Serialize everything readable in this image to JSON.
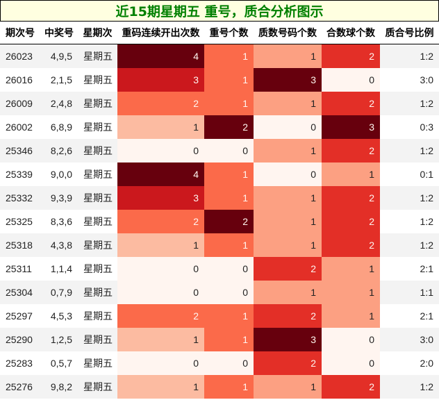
{
  "title": "近15期星期五 重号，质合分析图示",
  "columns": [
    "期次号",
    "中奖号",
    "星期次",
    "重码连续开出次数",
    "重号个数",
    "质数号码个数",
    "合数球个数",
    "质合号比例"
  ],
  "palettes": {
    "repeat_streak": {
      "0": "#fff5f0",
      "1": "#fcbba1",
      "2": "#fb6a4a",
      "3": "#cb181d",
      "4": "#67000d"
    },
    "repeat_count": {
      "0": "#fff5f0",
      "1": "#fb6a4a",
      "2": "#67000d"
    },
    "prime_count": {
      "0": "#fff5f0",
      "1": "#fca082",
      "2": "#e32f27",
      "3": "#67000d"
    },
    "composite_count": {
      "0": "#fff5f0",
      "1": "#fca082",
      "2": "#e32f27",
      "3": "#67000d"
    }
  },
  "rows": [
    {
      "issue": "26023",
      "numbers": "4,9,5",
      "weekday": "星期五",
      "repeat_streak": 4,
      "repeat_count": 1,
      "prime_count": 1,
      "composite_count": 2,
      "ratio": "1:2"
    },
    {
      "issue": "26016",
      "numbers": "2,1,5",
      "weekday": "星期五",
      "repeat_streak": 3,
      "repeat_count": 1,
      "prime_count": 3,
      "composite_count": 0,
      "ratio": "3:0"
    },
    {
      "issue": "26009",
      "numbers": "2,4,8",
      "weekday": "星期五",
      "repeat_streak": 2,
      "repeat_count": 1,
      "prime_count": 1,
      "composite_count": 2,
      "ratio": "1:2"
    },
    {
      "issue": "26002",
      "numbers": "6,8,9",
      "weekday": "星期五",
      "repeat_streak": 1,
      "repeat_count": 2,
      "prime_count": 0,
      "composite_count": 3,
      "ratio": "0:3"
    },
    {
      "issue": "25346",
      "numbers": "8,2,6",
      "weekday": "星期五",
      "repeat_streak": 0,
      "repeat_count": 0,
      "prime_count": 1,
      "composite_count": 2,
      "ratio": "1:2"
    },
    {
      "issue": "25339",
      "numbers": "9,0,0",
      "weekday": "星期五",
      "repeat_streak": 4,
      "repeat_count": 1,
      "prime_count": 0,
      "composite_count": 1,
      "ratio": "0:1"
    },
    {
      "issue": "25332",
      "numbers": "9,3,9",
      "weekday": "星期五",
      "repeat_streak": 3,
      "repeat_count": 1,
      "prime_count": 1,
      "composite_count": 2,
      "ratio": "1:2"
    },
    {
      "issue": "25325",
      "numbers": "8,3,6",
      "weekday": "星期五",
      "repeat_streak": 2,
      "repeat_count": 2,
      "prime_count": 1,
      "composite_count": 2,
      "ratio": "1:2"
    },
    {
      "issue": "25318",
      "numbers": "4,3,8",
      "weekday": "星期五",
      "repeat_streak": 1,
      "repeat_count": 1,
      "prime_count": 1,
      "composite_count": 2,
      "ratio": "1:2"
    },
    {
      "issue": "25311",
      "numbers": "1,1,4",
      "weekday": "星期五",
      "repeat_streak": 0,
      "repeat_count": 0,
      "prime_count": 2,
      "composite_count": 1,
      "ratio": "2:1"
    },
    {
      "issue": "25304",
      "numbers": "0,7,9",
      "weekday": "星期五",
      "repeat_streak": 0,
      "repeat_count": 0,
      "prime_count": 1,
      "composite_count": 1,
      "ratio": "1:1"
    },
    {
      "issue": "25297",
      "numbers": "4,5,3",
      "weekday": "星期五",
      "repeat_streak": 2,
      "repeat_count": 1,
      "prime_count": 2,
      "composite_count": 1,
      "ratio": "2:1"
    },
    {
      "issue": "25290",
      "numbers": "1,2,5",
      "weekday": "星期五",
      "repeat_streak": 1,
      "repeat_count": 1,
      "prime_count": 3,
      "composite_count": 0,
      "ratio": "3:0"
    },
    {
      "issue": "25283",
      "numbers": "0,5,7",
      "weekday": "星期五",
      "repeat_streak": 0,
      "repeat_count": 0,
      "prime_count": 2,
      "composite_count": 0,
      "ratio": "2:0"
    },
    {
      "issue": "25276",
      "numbers": "9,8,2",
      "weekday": "星期五",
      "repeat_streak": 1,
      "repeat_count": 1,
      "prime_count": 1,
      "composite_count": 2,
      "ratio": "1:2"
    }
  ],
  "chart_data": {
    "type": "heatmap",
    "title": "近15期星期五 重号，质合分析图示",
    "categories": [
      "26023",
      "26016",
      "26009",
      "26002",
      "25346",
      "25339",
      "25332",
      "25325",
      "25318",
      "25311",
      "25304",
      "25297",
      "25290",
      "25283",
      "25276"
    ],
    "series": [
      {
        "name": "重码连续开出次数",
        "values": [
          4,
          3,
          2,
          1,
          0,
          4,
          3,
          2,
          1,
          0,
          0,
          2,
          1,
          0,
          1
        ]
      },
      {
        "name": "重号个数",
        "values": [
          1,
          1,
          1,
          2,
          0,
          1,
          1,
          2,
          1,
          0,
          0,
          1,
          1,
          0,
          1
        ]
      },
      {
        "name": "质数号码个数",
        "values": [
          1,
          3,
          1,
          0,
          1,
          0,
          1,
          1,
          1,
          2,
          1,
          2,
          3,
          2,
          1
        ]
      },
      {
        "name": "合数球个数",
        "values": [
          2,
          0,
          2,
          3,
          2,
          1,
          2,
          2,
          2,
          1,
          1,
          1,
          0,
          0,
          2
        ]
      }
    ],
    "row_labels": {
      "中奖号": [
        "4,9,5",
        "2,1,5",
        "2,4,8",
        "6,8,9",
        "8,2,6",
        "9,0,0",
        "9,3,9",
        "8,3,6",
        "4,3,8",
        "1,1,4",
        "0,7,9",
        "4,5,3",
        "1,2,5",
        "0,5,7",
        "9,8,2"
      ],
      "星期次": [
        "星期五",
        "星期五",
        "星期五",
        "星期五",
        "星期五",
        "星期五",
        "星期五",
        "星期五",
        "星期五",
        "星期五",
        "星期五",
        "星期五",
        "星期五",
        "星期五",
        "星期五"
      ],
      "质合号比例": [
        "1:2",
        "3:0",
        "1:2",
        "0:3",
        "1:2",
        "0:1",
        "1:2",
        "1:2",
        "1:2",
        "2:1",
        "1:1",
        "2:1",
        "3:0",
        "2:0",
        "1:2"
      ]
    },
    "colormap": "Reds"
  }
}
